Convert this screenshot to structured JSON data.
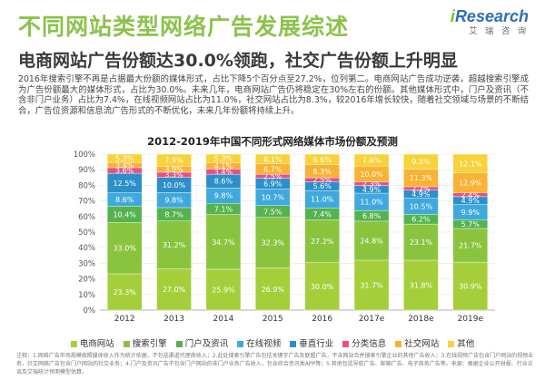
{
  "header": {
    "title": "不同网站类型网络广告发展综述",
    "logo_prefix": "i",
    "logo_rest": "Research",
    "logo_sub": "艾 瑞 咨 询"
  },
  "headline": "电商网站广告份额达30.0%领跑，社交广告份额上升明显",
  "body": "2016年搜索引擎不再是占据最大份额的媒体形式，占比下降5个百分点至27.2%，位列第二。电商网站广告成功逆袭，超越搜索引擎成为广告份额最大的媒体形式，占比为30.0%。未来几年，电商网站广告仍将稳定在30%左右的份额。其他媒体形式中，门户及资讯（不含非门户业务）占比为7.4%，在线视频网站占比为11.0%，社交网站占比为8.3%，较2016年增长较快，随着社交领域与场景的不断结合，广告位资源和信息流广告形式的不断优化，未来几年份额将持续上升。",
  "chart_data": {
    "type": "bar",
    "stacked": "percent",
    "title": "2012-2019年中国不同形式网络媒体市场份额及预测",
    "categories": [
      "2012",
      "2013",
      "2014",
      "2015",
      "2016",
      "2017e",
      "2018e",
      "2019e"
    ],
    "series": [
      {
        "name": "电商网站",
        "color": "#a4cf3a",
        "values": [
          23.3,
          27.0,
          25.9,
          26.9,
          30.0,
          31.7,
          31.8,
          30.9
        ]
      },
      {
        "name": "搜索引擎",
        "color": "#8ac43e",
        "values": [
          33.0,
          31.2,
          34.7,
          32.3,
          27.2,
          24.8,
          23.1,
          21.7
        ]
      },
      {
        "name": "门户及资讯",
        "color": "#55b250",
        "values": [
          10.4,
          8.7,
          7.1,
          7.5,
          7.4,
          6.8,
          6.2,
          5.7
        ]
      },
      {
        "name": "在线视频",
        "color": "#3fa9dd",
        "values": [
          8.6,
          9.8,
          9.8,
          10.7,
          11.0,
          11.0,
          10.5,
          9.9
        ]
      },
      {
        "name": "垂直行业",
        "color": "#2c8fc9",
        "values": [
          12.5,
          10.0,
          8.6,
          6.9,
          5.6,
          4.9,
          4.9,
          4.9
        ]
      },
      {
        "name": "分类信息",
        "color": "#e94f86",
        "values": [
          3.6,
          3.3,
          3.4,
          2.5,
          2.5,
          2.3,
          2.2,
          2.4
        ]
      },
      {
        "name": "社交网站",
        "color": "#f9b233",
        "values": [
          3.4,
          3.9,
          4.1,
          6.7,
          8.3,
          10.0,
          11.3,
          12.9
        ]
      },
      {
        "name": "其他",
        "color": "#f8d23a",
        "values": [
          5.3,
          7.9,
          5.3,
          6.1,
          6.6,
          7.6,
          9.5,
          12.1
        ]
      }
    ],
    "ylim": [
      0,
      100
    ],
    "yticks": [
      "0%",
      "10%",
      "20%",
      "30%",
      "40%",
      "50%",
      "60%",
      "70%",
      "80%",
      "90%",
      "100%"
    ],
    "grid": true,
    "legend_position": "bottom"
  },
  "footnote": "注释：1.网络广告市场规模按照媒体收入作为统计依据，不包括渠道代理商收入；2.此处搜索引擎广告包括关键字广告及联盟广告，不含网站合并搜索引擎企业的其他广告收入；3.在线视频广告包含门户网站的视频业务，社交网络广告包含门户网站的社交业务；4.门户及资讯广告不包含门户网站的非门户业务广告收入，包含综合资讯类APP等；5.其他包括导航广告、邮箱广告、电子商务广告等。来源：根据企业公开财报、行业访谈及艾瑞统计预测模型估算。"
}
